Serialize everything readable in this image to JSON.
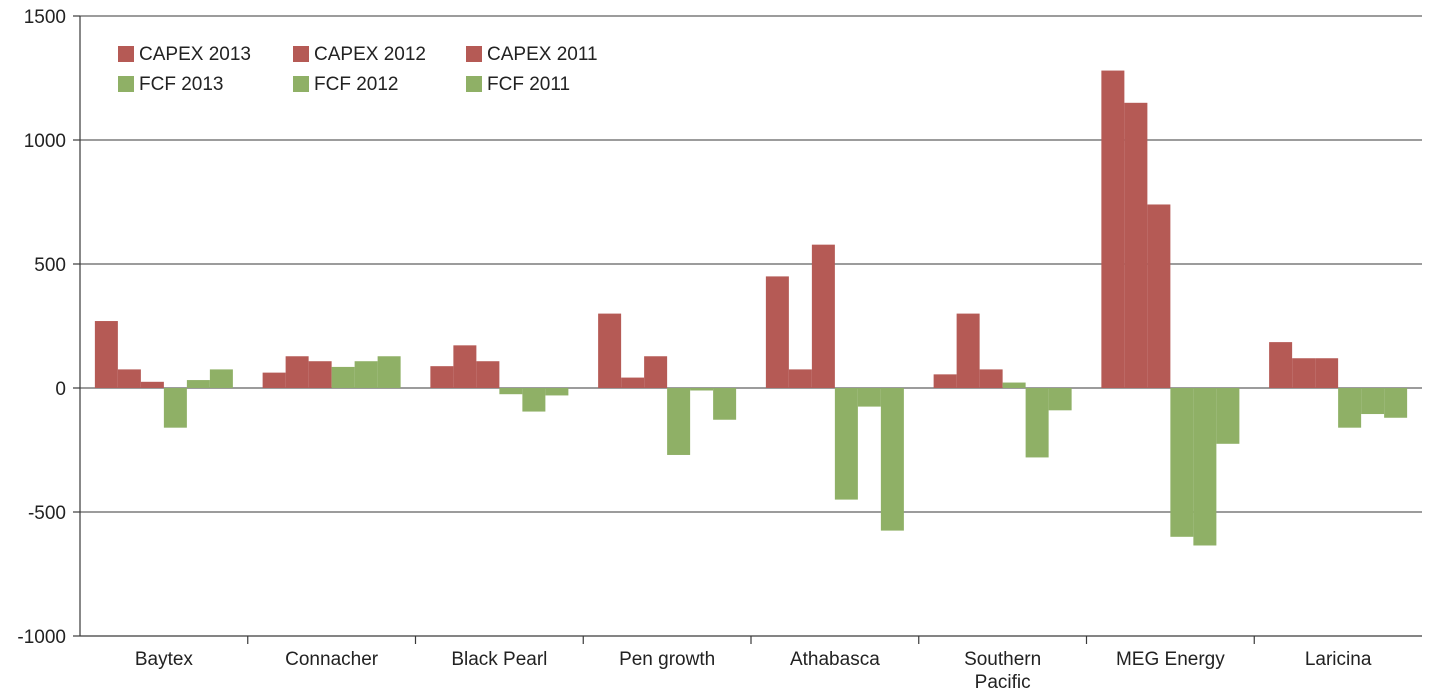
{
  "chart_data": {
    "type": "bar",
    "title": "",
    "xlabel": "",
    "ylabel": "",
    "ylim": [
      -1000,
      1500
    ],
    "yticks": [
      1500,
      1000,
      500,
      0,
      -500,
      -1000
    ],
    "ytick_labels": [
      "1500",
      "1000",
      "500",
      "0",
      "-500",
      "-1000"
    ],
    "grid": true,
    "legend_position": "top-left",
    "categories": [
      [
        "Baytex"
      ],
      [
        "Connacher"
      ],
      [
        "Black Pearl"
      ],
      [
        "Pen growth"
      ],
      [
        "Athabasca"
      ],
      [
        "Southern",
        "Pacific"
      ],
      [
        "MEG Energy"
      ],
      [
        "Laricina"
      ]
    ],
    "series": [
      {
        "name": "CAPEX 2013",
        "color": "#b55a55",
        "values": [
          270,
          62,
          88,
          300,
          450,
          55,
          1280,
          185
        ]
      },
      {
        "name": "CAPEX 2012",
        "color": "#b55a55",
        "values": [
          75,
          128,
          172,
          42,
          75,
          300,
          1150,
          120
        ]
      },
      {
        "name": "CAPEX 2011",
        "color": "#b55a55",
        "values": [
          25,
          108,
          108,
          128,
          578,
          75,
          740,
          120
        ]
      },
      {
        "name": "FCF 2013",
        "color": "#8fb066",
        "values": [
          -160,
          85,
          -25,
          -270,
          -450,
          22,
          -600,
          -160
        ]
      },
      {
        "name": "FCF 2012",
        "color": "#8fb066",
        "values": [
          32,
          108,
          -95,
          -10,
          -75,
          -280,
          -635,
          -105
        ]
      },
      {
        "name": "FCF 2011",
        "color": "#8fb066",
        "values": [
          75,
          128,
          -30,
          -128,
          -575,
          -90,
          -225,
          -120
        ]
      }
    ],
    "legend_rows": [
      [
        0,
        1,
        2
      ],
      [
        3,
        4,
        5
      ]
    ]
  }
}
